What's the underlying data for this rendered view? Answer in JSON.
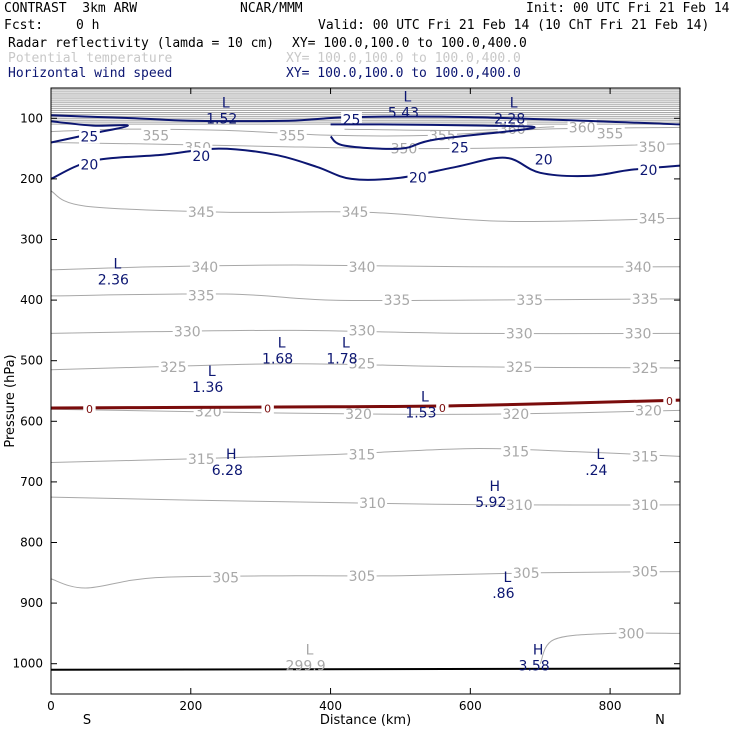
{
  "header": {
    "model": "CONTRAST  3km ARW",
    "center": "NCAR/MMM",
    "init": "Init: 00 UTC Fri 21 Feb 14",
    "fcst_label": "Fcst:",
    "fcst_value": "0 h",
    "valid": "Valid: 00 UTC Fri 21 Feb 14 (10 ChT Fri 21 Feb 14)",
    "field1_name": "Radar reflectivity (lamda = 10 cm)",
    "field1_xy": "XY= 100.0,100.0 to 100.0,400.0",
    "field2_name": "Potential temperature",
    "field2_xy": "XY= 100.0,100.0 to 100.0,400.0",
    "field3_name": "Horizontal wind speed",
    "field3_xy": "XY= 100.0,100.0 to 100.0,400.0"
  },
  "colors": {
    "theta": "#a8a8a8",
    "wind": "#0c1672",
    "refl": "#7a0c0c",
    "axis": "#000000",
    "legend_light": "#c8c8c8"
  },
  "chart_data": {
    "type": "contour-cross-section",
    "xlabel": "Distance (km)",
    "ylabel": "Pressure (hPa)",
    "xlim": [
      0,
      900
    ],
    "ylim": [
      1050,
      50
    ],
    "x_ticks": [
      0,
      200,
      400,
      600,
      800
    ],
    "y_ticks": [
      100,
      200,
      300,
      400,
      500,
      600,
      700,
      800,
      900,
      1000
    ],
    "x_end_labels": {
      "left": "S",
      "right": "N"
    },
    "theta_contours": [
      {
        "label": "355",
        "points": [
          [
            0,
            122
          ],
          [
            100,
            118
          ],
          [
            250,
            120
          ],
          [
            400,
            128
          ],
          [
            550,
            128
          ],
          [
            700,
            118
          ],
          [
            900,
            115
          ]
        ],
        "label_positions": [
          [
            150,
            128
          ],
          [
            345,
            128
          ],
          [
            560,
            128
          ],
          [
            800,
            125
          ]
        ]
      },
      {
        "label": "350",
        "points": [
          [
            0,
            140
          ],
          [
            120,
            142
          ],
          [
            300,
            146
          ],
          [
            500,
            150
          ],
          [
            700,
            148
          ],
          [
            900,
            142
          ]
        ],
        "label_positions": [
          [
            210,
            148
          ],
          [
            505,
            150
          ],
          [
            860,
            147
          ]
        ]
      },
      {
        "label": "360",
        "points": [
          [
            420,
            118
          ],
          [
            600,
            120
          ],
          [
            720,
            114
          ]
        ],
        "label_positions": [
          [
            660,
            118
          ],
          [
            760,
            115
          ]
        ]
      },
      {
        "label": "345",
        "points": [
          [
            0,
            220
          ],
          [
            50,
            245
          ],
          [
            250,
            255
          ],
          [
            450,
            255
          ],
          [
            650,
            270
          ],
          [
            900,
            265
          ]
        ],
        "label_positions": [
          [
            215,
            255
          ],
          [
            435,
            255
          ],
          [
            860,
            265
          ]
        ]
      },
      {
        "label": "340",
        "points": [
          [
            0,
            350
          ],
          [
            150,
            345
          ],
          [
            350,
            342
          ],
          [
            600,
            345
          ],
          [
            900,
            345
          ]
        ],
        "label_positions": [
          [
            220,
            345
          ],
          [
            445,
            345
          ],
          [
            840,
            345
          ]
        ]
      },
      {
        "label": "335",
        "points": [
          [
            0,
            393
          ],
          [
            250,
            390
          ],
          [
            400,
            400
          ],
          [
            600,
            400
          ],
          [
            900,
            398
          ]
        ],
        "label_positions": [
          [
            215,
            392
          ],
          [
            495,
            400
          ],
          [
            685,
            400
          ],
          [
            850,
            398
          ]
        ]
      },
      {
        "label": "330",
        "points": [
          [
            0,
            455
          ],
          [
            150,
            452
          ],
          [
            350,
            450
          ],
          [
            600,
            455
          ],
          [
            900,
            455
          ]
        ],
        "label_positions": [
          [
            195,
            452
          ],
          [
            445,
            450
          ],
          [
            670,
            455
          ],
          [
            840,
            455
          ]
        ]
      },
      {
        "label": "325",
        "points": [
          [
            0,
            515
          ],
          [
            150,
            510
          ],
          [
            350,
            505
          ],
          [
            600,
            510
          ],
          [
            900,
            512
          ]
        ],
        "label_positions": [
          [
            175,
            510
          ],
          [
            445,
            505
          ],
          [
            670,
            510
          ],
          [
            850,
            512
          ]
        ]
      },
      {
        "label": "320",
        "points": [
          [
            0,
            580
          ],
          [
            200,
            584
          ],
          [
            450,
            588
          ],
          [
            650,
            588
          ],
          [
            900,
            582
          ]
        ],
        "label_positions": [
          [
            225,
            584
          ],
          [
            440,
            588
          ],
          [
            665,
            588
          ],
          [
            855,
            582
          ]
        ]
      },
      {
        "label": "315",
        "points": [
          [
            0,
            668
          ],
          [
            200,
            662
          ],
          [
            400,
            655
          ],
          [
            600,
            645
          ],
          [
            750,
            650
          ],
          [
            900,
            658
          ]
        ],
        "label_positions": [
          [
            215,
            662
          ],
          [
            445,
            655
          ],
          [
            665,
            650
          ],
          [
            850,
            658
          ]
        ]
      },
      {
        "label": "310",
        "points": [
          [
            0,
            725
          ],
          [
            200,
            730
          ],
          [
            450,
            735
          ],
          [
            650,
            738
          ],
          [
            900,
            738
          ]
        ],
        "label_positions": [
          [
            460,
            735
          ],
          [
            670,
            738
          ],
          [
            850,
            738
          ]
        ]
      },
      {
        "label": "305",
        "points": [
          [
            0,
            860
          ],
          [
            50,
            875
          ],
          [
            150,
            858
          ],
          [
            350,
            855
          ],
          [
            500,
            855
          ],
          [
            700,
            850
          ],
          [
            900,
            848
          ]
        ],
        "label_positions": [
          [
            250,
            858
          ],
          [
            445,
            855
          ],
          [
            680,
            850
          ],
          [
            850,
            848
          ]
        ]
      },
      {
        "label": "300",
        "points": [
          [
            700,
            1000
          ],
          [
            720,
            960
          ],
          [
            800,
            950
          ],
          [
            900,
            950
          ]
        ],
        "label_positions": [
          [
            830,
            950
          ]
        ]
      }
    ],
    "wind_contours": [
      {
        "label": "25",
        "points": [
          [
            0,
            95
          ],
          [
            120,
            100
          ],
          [
            200,
            104
          ],
          [
            340,
            104
          ],
          [
            430,
            98
          ],
          [
            600,
            98
          ],
          [
            900,
            110
          ]
        ],
        "label_positions": [
          [
            430,
            102
          ]
        ]
      },
      {
        "label": "25",
        "points": [
          [
            0,
            105
          ],
          [
            60,
            112
          ],
          [
            110,
            112
          ],
          [
            60,
            125
          ],
          [
            0,
            140
          ]
        ],
        "label_positions": [
          [
            55,
            130
          ]
        ]
      },
      {
        "label": "25",
        "points": [
          [
            400,
            110
          ],
          [
            470,
            110
          ],
          [
            620,
            112
          ],
          [
            690,
            116
          ],
          [
            550,
            135
          ],
          [
            500,
            150
          ],
          [
            420,
            145
          ],
          [
            400,
            130
          ]
        ],
        "label_positions": [
          [
            585,
            148
          ]
        ]
      },
      {
        "label": "20",
        "points": [
          [
            0,
            200
          ],
          [
            60,
            170
          ],
          [
            160,
            160
          ],
          [
            240,
            150
          ],
          [
            320,
            160
          ],
          [
            380,
            180
          ],
          [
            430,
            200
          ],
          [
            500,
            198
          ],
          [
            580,
            180
          ],
          [
            650,
            165
          ],
          [
            700,
            190
          ],
          [
            770,
            195
          ],
          [
            830,
            185
          ],
          [
            900,
            178
          ]
        ],
        "label_positions": [
          [
            55,
            176
          ],
          [
            215,
            162
          ],
          [
            525,
            198
          ],
          [
            705,
            168
          ],
          [
            855,
            185
          ]
        ]
      }
    ],
    "reflectivity_contours": [
      {
        "label": "0",
        "points": [
          [
            0,
            578
          ],
          [
            200,
            577
          ],
          [
            400,
            576
          ],
          [
            600,
            574
          ],
          [
            900,
            565
          ]
        ],
        "label_positions": [
          [
            55,
            578
          ],
          [
            310,
            577
          ],
          [
            560,
            576
          ],
          [
            885,
            565
          ]
        ]
      }
    ],
    "surface_line": [
      [
        0,
        1010
      ],
      [
        900,
        1008
      ]
    ],
    "extrema": [
      {
        "kind": "L",
        "value": "1.52",
        "x": 250,
        "p": 82
      },
      {
        "kind": "L",
        "value": "5.43",
        "x": 510,
        "p": 72
      },
      {
        "kind": "L",
        "value": "2.28",
        "x": 662,
        "p": 82
      },
      {
        "kind": "L",
        "value": "2.36",
        "x": 95,
        "p": 348
      },
      {
        "kind": "L",
        "value": "1.68",
        "x": 330,
        "p": 478
      },
      {
        "kind": "L",
        "value": "1.78",
        "x": 422,
        "p": 478
      },
      {
        "kind": "L",
        "value": "1.36",
        "x": 230,
        "p": 525
      },
      {
        "kind": "L",
        "value": "1.53",
        "x": 535,
        "p": 567
      },
      {
        "kind": "H",
        "value": "6.28",
        "x": 258,
        "p": 662
      },
      {
        "kind": "L",
        "value": ".24",
        "x": 786,
        "p": 662
      },
      {
        "kind": "H",
        "value": "5.92",
        "x": 635,
        "p": 715
      },
      {
        "kind": "L",
        "value": ".86",
        "x": 653,
        "p": 865
      },
      {
        "kind": "L",
        "value": "299.9",
        "x": 370,
        "p": 985,
        "field": "theta"
      },
      {
        "kind": "H",
        "value": "3.58",
        "x": 697,
        "p": 985
      }
    ]
  }
}
